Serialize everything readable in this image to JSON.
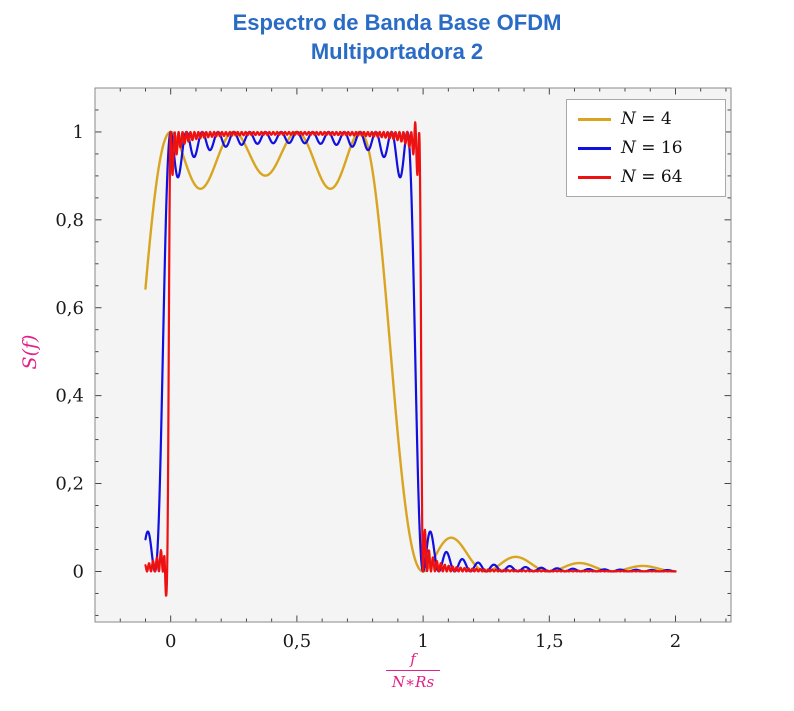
{
  "title": {
    "line1": "Espectro de Banda Base OFDM",
    "line2": "Multiportadora 2"
  },
  "axes": {
    "y_label": "S(f)",
    "x_label_numerator": "f",
    "x_label_denominator": "N∗Rs",
    "xlim": [
      -0.3,
      2.22
    ],
    "ylim": [
      -0.115,
      1.1
    ],
    "x_ticks": [
      {
        "value": 0,
        "label": "0"
      },
      {
        "value": 0.5,
        "label": "0,5"
      },
      {
        "value": 1,
        "label": "1"
      },
      {
        "value": 1.5,
        "label": "1,5"
      },
      {
        "value": 2,
        "label": "2"
      }
    ],
    "y_ticks": [
      {
        "value": 0,
        "label": "0"
      },
      {
        "value": 0.2,
        "label": "0,2"
      },
      {
        "value": 0.4,
        "label": "0,4"
      },
      {
        "value": 0.6,
        "label": "0,6"
      },
      {
        "value": 0.8,
        "label": "0,8"
      },
      {
        "value": 1,
        "label": "1"
      }
    ],
    "x_minor_step": 0.1,
    "y_minor_step": 0.05
  },
  "colors": {
    "title": "#2A6BC5",
    "axis_label": "#E0218A",
    "frame": "#8A8A8A",
    "plot_bg": "#F4F4F4",
    "tick": "#333333",
    "tick_label": "#1A1A1A",
    "legend_border": "#A8A8A8"
  },
  "chart_data": {
    "type": "line",
    "title": "Espectro de Banda Base OFDM — Multiportadora 2",
    "xlabel": "f/(N∗Rs)",
    "ylabel": "S(f)",
    "xlim": [
      -0.3,
      2.22
    ],
    "ylim": [
      -0.115,
      1.1
    ],
    "grid": false,
    "background": "#F4F4F4",
    "legend_position": "top-right",
    "band": {
      "flat_top_level": 1.0,
      "band_edges_x": [
        0,
        1
      ]
    },
    "model": "S(x) = sum_{k=0}^{N-1} sinc^2(N*x - k), sinc(t)=sin(pi*t)/(pi*t), x = f/(N*Rs); flat ~1 over 0<=x<=1 with N ripple lobes, half-power at band edges, decaying sidelobes for x>1, plus small plotting over/undershoot artifacts near the N=64 band edges",
    "x_range_sampled": [
      -0.1,
      2.0
    ],
    "sample_step": 0.00125,
    "series": [
      {
        "name": "N = 4",
        "N": 4,
        "color": "#D9A521",
        "linewidth": 2.4
      },
      {
        "name": "N = 16",
        "N": 16,
        "color": "#1010E0",
        "linewidth": 2.2
      },
      {
        "name": "N = 64",
        "N": 64,
        "color": "#EE1111",
        "linewidth": 2.2,
        "edge_artifacts": [
          {
            "x": -0.0205,
            "amp": -0.115,
            "w": 0.0045
          },
          {
            "x": 0.96875,
            "amp": 0.022,
            "w": 0.004
          }
        ]
      }
    ],
    "key_values": {
      "value_at_x_-0.1": {
        "N4": 0.63,
        "N16": 0.07,
        "N64": 0.01
      },
      "interior_ripple_min": {
        "N4": 0.87,
        "N16": 0.96,
        "N64": 0.985
      },
      "first_sidelobe_after_band": {
        "N4": 0.075,
        "N16": 0.05,
        "N64": 0.02
      },
      "N64_undershoot_min": -0.045,
      "N64_overshoot_max": 1.02
    }
  }
}
